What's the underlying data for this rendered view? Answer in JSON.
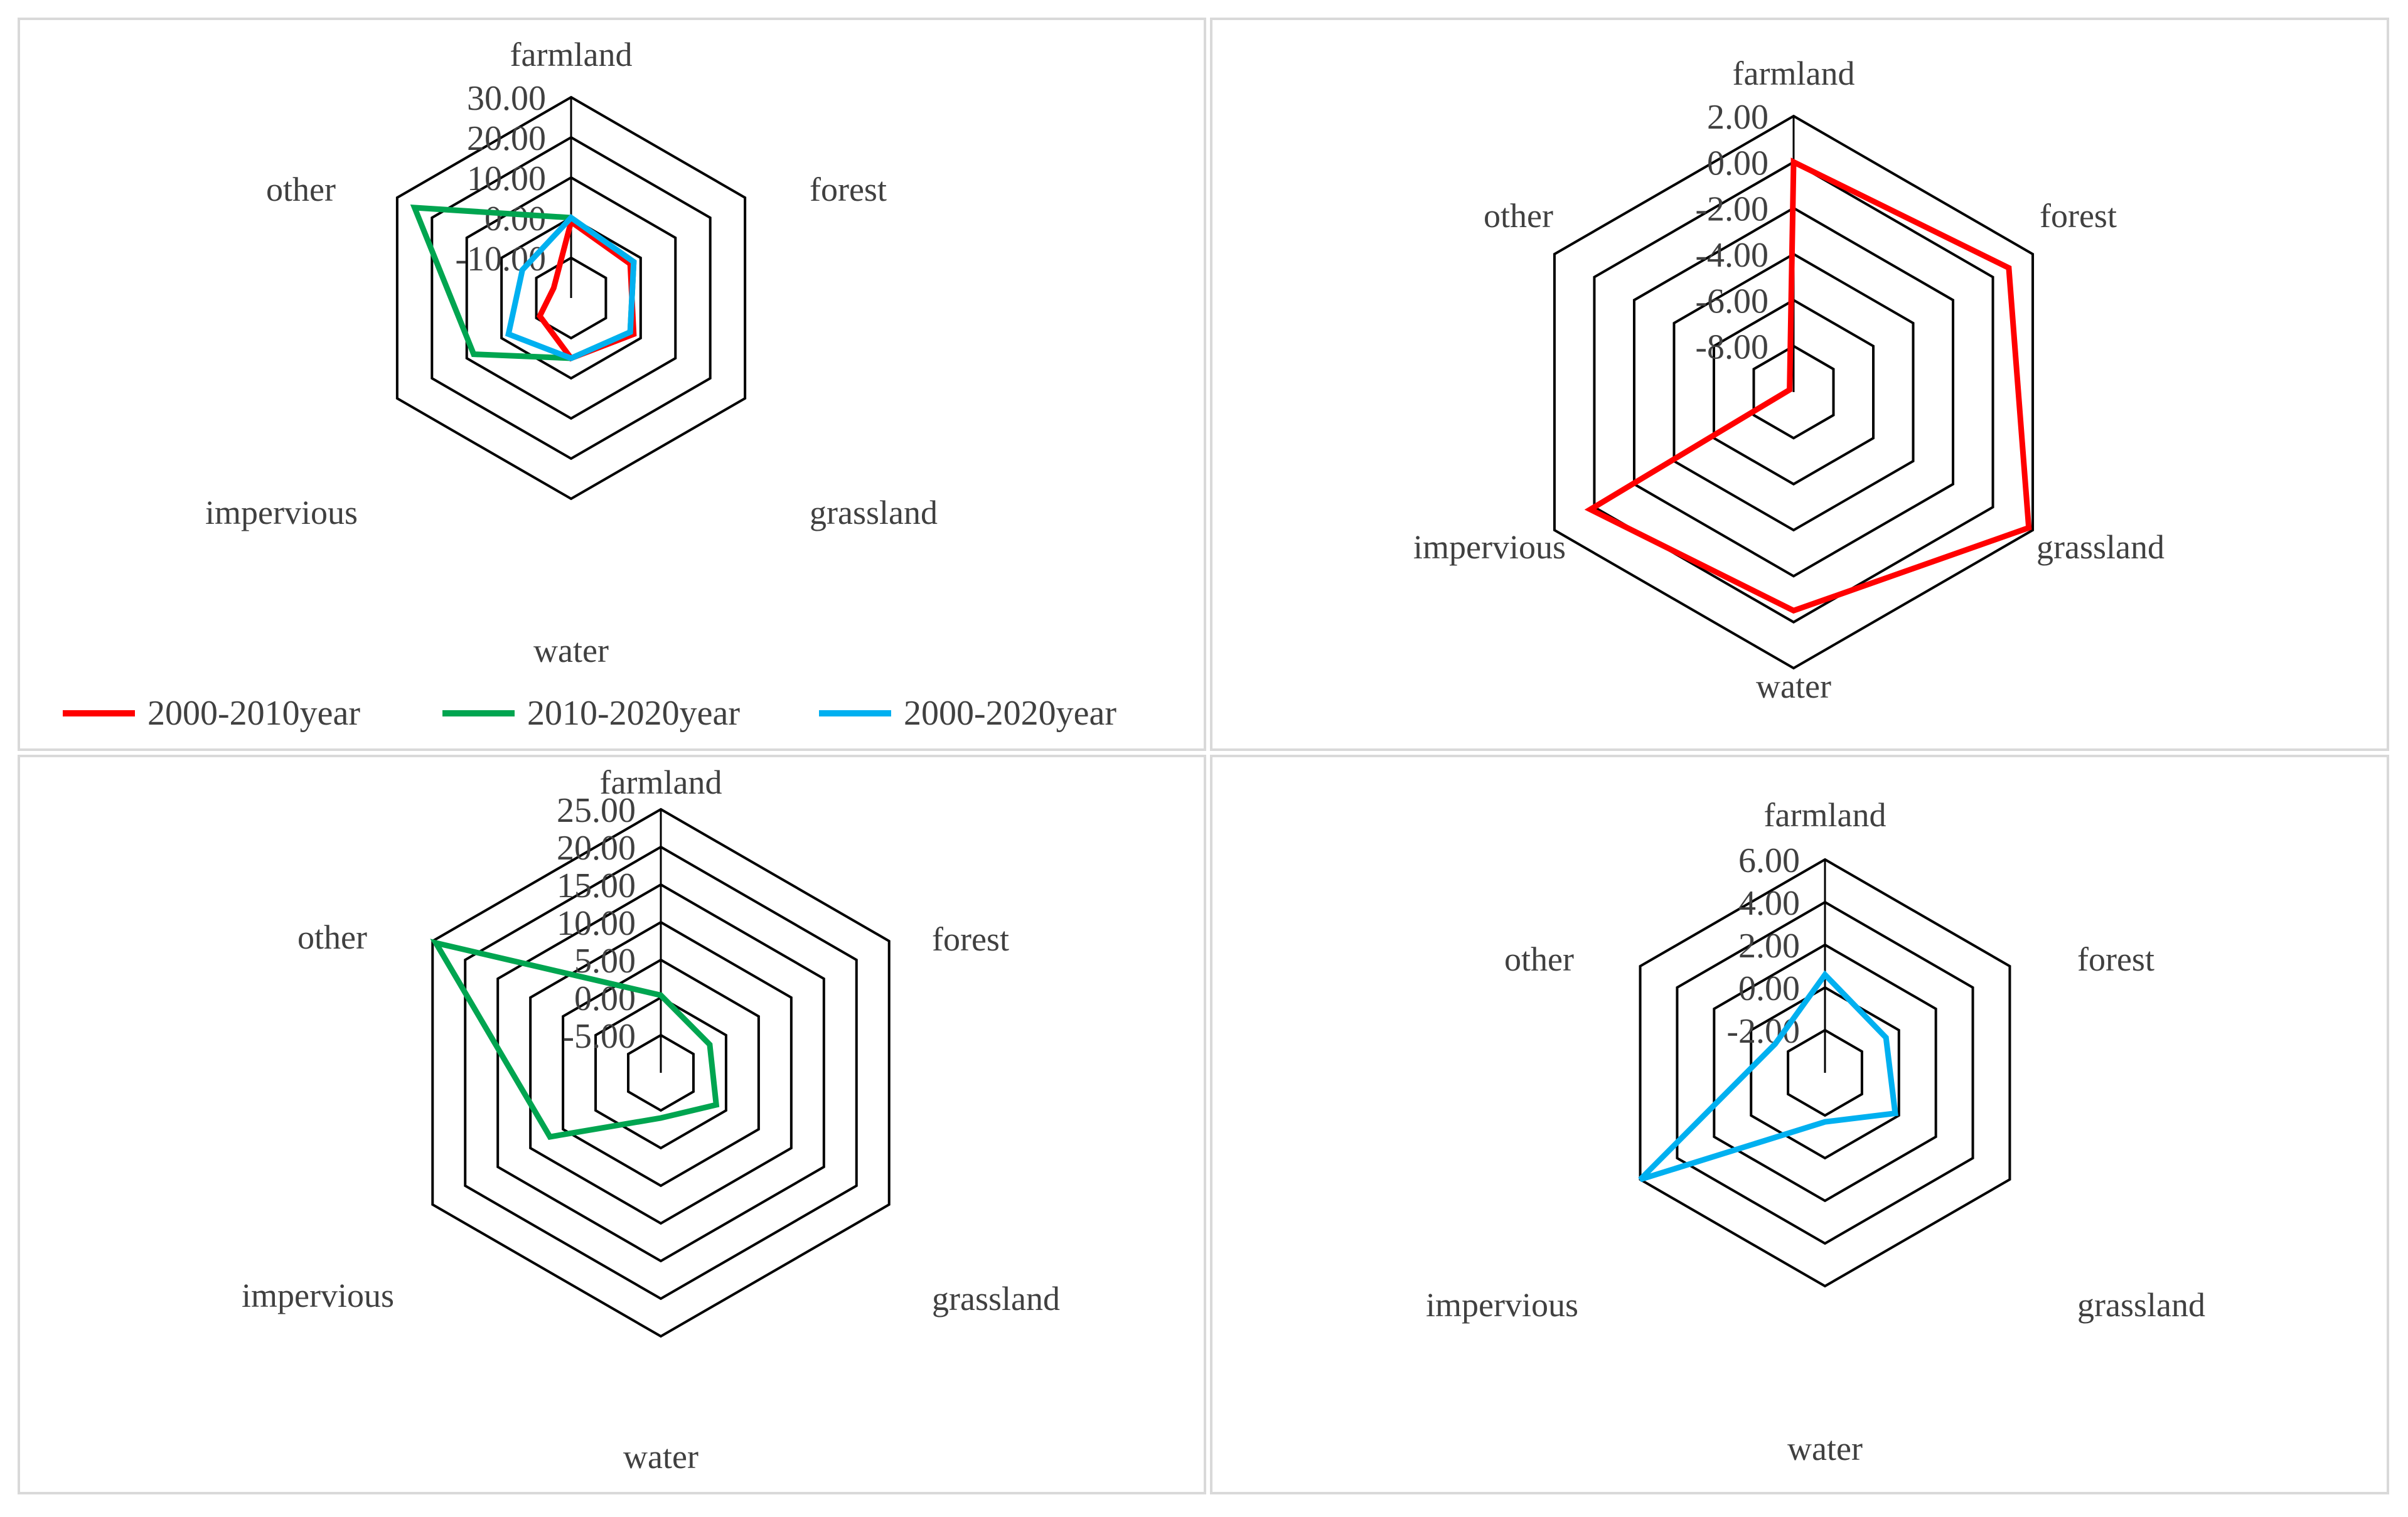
{
  "colors": {
    "grid": "#000000",
    "text": "#404040",
    "panel_border": "#d9d9d9",
    "s2000_2010": "#ff0000",
    "s2010_2020": "#00a550",
    "s2000_2020": "#00b0f0"
  },
  "chart_data": [
    {
      "type": "radar",
      "panel": "top-left",
      "axes": [
        "farmland",
        "forest",
        "grassland",
        "water",
        "impervious",
        "other"
      ],
      "rlim": [
        -20,
        30
      ],
      "ticks": [
        "30.00",
        "20.00",
        "10.00",
        "0.00",
        "-10.00"
      ],
      "tick_values": [
        30,
        20,
        10,
        0,
        -10
      ],
      "series": [
        {
          "name": "2000-2010year",
          "color": "#ff0000",
          "values": [
            -1,
            -3,
            -2,
            -5,
            -11,
            -15
          ]
        },
        {
          "name": "2010-2020year",
          "color": "#00a550",
          "values": [
            0,
            -2,
            -3,
            -5,
            8,
            25
          ]
        },
        {
          "name": "2000-2020year",
          "color": "#00b0f0",
          "values": [
            0,
            -2,
            -3,
            -5,
            -2,
            -6
          ]
        }
      ],
      "legend": {
        "position": "bottom",
        "entries": [
          "2000-2010year",
          "2010-2020year",
          "2000-2020year"
        ]
      }
    },
    {
      "type": "radar",
      "panel": "top-right",
      "axes": [
        "farmland",
        "forest",
        "grassland",
        "water",
        "impervious",
        "other"
      ],
      "rlim": [
        -10,
        2
      ],
      "ticks": [
        "2.00",
        "0.00",
        "-2.00",
        "-4.00",
        "-6.00",
        "-8.00"
      ],
      "tick_values": [
        2,
        0,
        -2,
        -4,
        -6,
        -8
      ],
      "series": [
        {
          "name": "2000-2010year",
          "color": "#ff0000",
          "values": [
            0,
            0.8,
            1.8,
            -0.5,
            0.2,
            -9.8
          ]
        }
      ]
    },
    {
      "type": "radar",
      "panel": "bottom-left",
      "axes": [
        "farmland",
        "forest",
        "grassland",
        "water",
        "impervious",
        "other"
      ],
      "rlim": [
        -10,
        25
      ],
      "ticks": [
        "25.00",
        "20.00",
        "15.00",
        "10.00",
        "5.00",
        "0.00",
        "-5.00"
      ],
      "tick_values": [
        25,
        20,
        15,
        10,
        5,
        0,
        -5
      ],
      "series": [
        {
          "name": "2010-2020year",
          "color": "#00a550",
          "values": [
            0.3,
            -2.5,
            -1.5,
            -4,
            7,
            24.5
          ]
        }
      ]
    },
    {
      "type": "radar",
      "panel": "bottom-right",
      "axes": [
        "farmland",
        "forest",
        "grassland",
        "water",
        "impervious",
        "other"
      ],
      "rlim": [
        -4,
        6
      ],
      "ticks": [
        "6.00",
        "4.00",
        "2.00",
        "0.00",
        "-2.00"
      ],
      "tick_values": [
        6,
        4,
        2,
        0,
        -2
      ],
      "series": [
        {
          "name": "2000-2020year",
          "color": "#00b0f0",
          "values": [
            0.6,
            -0.7,
            -0.2,
            -1.7,
            6,
            -1.3
          ]
        }
      ]
    }
  ]
}
